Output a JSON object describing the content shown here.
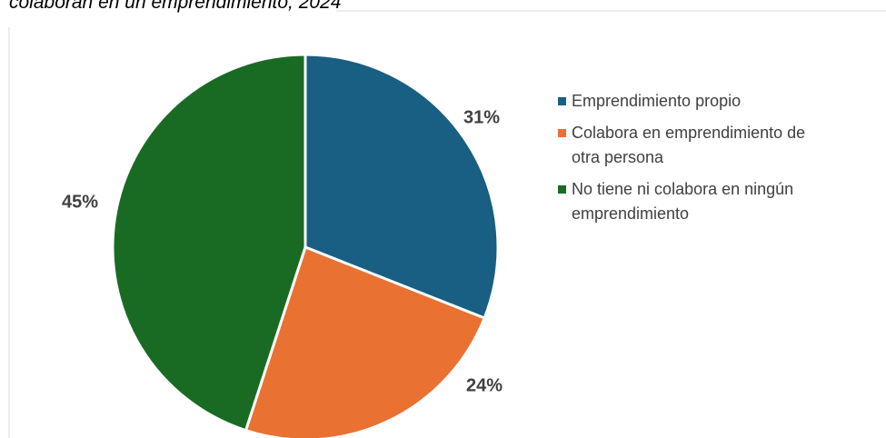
{
  "chart_data": {
    "type": "pie",
    "title": "colaboran en un emprendimiento, 2024",
    "categories": [
      "Emprendimiento propio",
      "Colabora en emprendimiento de otra persona",
      "No tiene ni colabora en ningún emprendimiento"
    ],
    "values": [
      31,
      24,
      45
    ],
    "value_labels": [
      "31%",
      "24%",
      "45%"
    ],
    "colors": [
      "#195e83",
      "#e97132",
      "#196b24"
    ],
    "legend": "right"
  }
}
